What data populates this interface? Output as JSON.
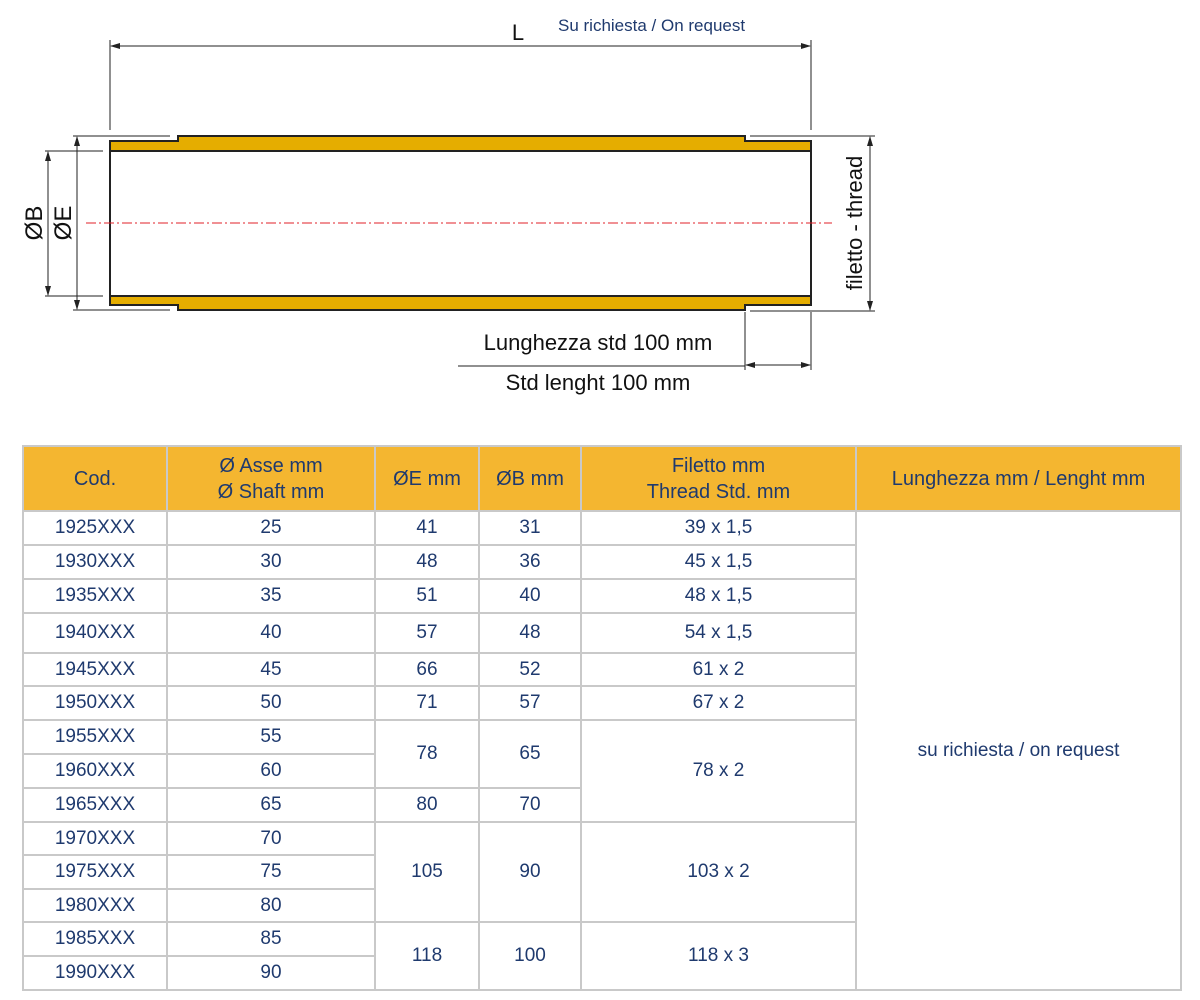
{
  "drawing": {
    "length_label": "L",
    "on_request_note": "Su richiesta / On request",
    "diameter_b_label": "ØB",
    "diameter_e_label": "ØE",
    "thread_label": "filetto - thread",
    "std_length_it": "Lunghezza std 100 mm",
    "std_length_en": "Std lenght 100 mm",
    "colors": {
      "tube": "#e5ad00",
      "centerline": "#e0202a",
      "text_blue": "#1f3a6e"
    }
  },
  "table": {
    "headers": [
      {
        "line1": "Cod.",
        "line2": ""
      },
      {
        "line1": "Ø Asse mm",
        "line2": "Ø Shaft mm"
      },
      {
        "line1": "ØE mm",
        "line2": ""
      },
      {
        "line1": "ØB mm",
        "line2": ""
      },
      {
        "line1": "Filetto mm",
        "line2": "Thread Std. mm"
      },
      {
        "line1": "Lunghezza mm / Lenght mm",
        "line2": ""
      }
    ],
    "length_value": "su richiesta / on request",
    "rows": [
      [
        "1925XXX",
        "25",
        "41",
        "31",
        "39 x 1,5"
      ],
      [
        "1930XXX",
        "30",
        "48",
        "36",
        "45 x 1,5"
      ],
      [
        "1935XXX",
        "35",
        "51",
        "40",
        "48 x 1,5"
      ],
      [
        "1940XXX",
        "40",
        "57",
        "48",
        "54 x 1,5"
      ],
      [
        "1945XXX",
        "45",
        "66",
        "52",
        "61 x 2"
      ],
      [
        "1950XXX",
        "50",
        "71",
        "57",
        "67 x 2"
      ],
      [
        "1955XXX",
        "55",
        "78",
        "65",
        "78 x 2"
      ],
      [
        "1960XXX",
        "60",
        null,
        null,
        null
      ],
      [
        "1965XXX",
        "65",
        "80",
        "70",
        null
      ],
      [
        "1970XXX",
        "70",
        "105",
        "90",
        "103 x 2"
      ],
      [
        "1975XXX",
        "75",
        null,
        null,
        null
      ],
      [
        "1980XXX",
        "80",
        null,
        null,
        null
      ],
      [
        "1985XXX",
        "85",
        "118",
        "100",
        "118 x 3"
      ],
      [
        "1990XXX",
        "90",
        null,
        null,
        null
      ]
    ],
    "colors": {
      "header_bg": "#f4b630",
      "border": "#c9c9c9",
      "text": "#1f3a6e"
    }
  }
}
